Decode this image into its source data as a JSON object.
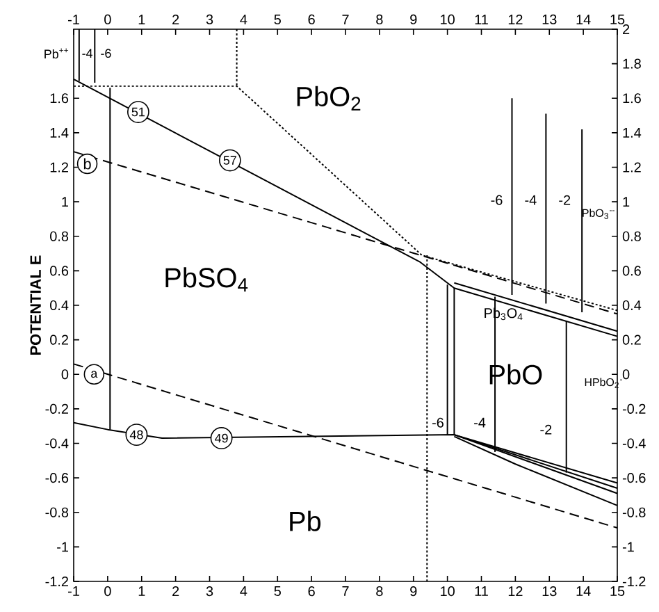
{
  "chart_data": {
    "type": "line",
    "ylabel": "POTENTIAL E",
    "xlim": [
      -1,
      15
    ],
    "xticks": [
      -1,
      0,
      1,
      2,
      3,
      4,
      5,
      6,
      7,
      8,
      9,
      10,
      11,
      12,
      13,
      14,
      15
    ],
    "x2lim": [
      -1,
      15
    ],
    "x2ticks": [
      -1,
      0,
      1,
      2,
      3,
      4,
      5,
      6,
      7,
      8,
      9,
      10,
      11,
      12,
      13,
      14,
      15
    ],
    "ylim": [
      -1.2,
      2
    ],
    "yticks": [
      -1.2,
      -1,
      -0.8,
      -0.6,
      -0.4,
      -0.2,
      0,
      0.2,
      0.4,
      0.6,
      0.8,
      1,
      1.2,
      1.4,
      1.6
    ],
    "y2lim": [
      -1.2,
      2
    ],
    "y2ticks": [
      -1.2,
      -1,
      -0.8,
      -0.6,
      -0.4,
      -0.2,
      0,
      0.2,
      0.4,
      0.6,
      0.8,
      1,
      1.2,
      1.4,
      1.6,
      1.8,
      2
    ],
    "series": [
      {
        "color": "#000000",
        "line_style": "dashed",
        "x": [
          -1,
          15
        ],
        "values": [
          1.29,
          0.35
        ]
      },
      {
        "color": "#000000",
        "line_style": "dashed",
        "x": [
          -1,
          15
        ],
        "values": [
          0.06,
          -0.89
        ]
      },
      {
        "color": "#000000",
        "line_style": "solid",
        "x": [
          -1,
          9.2,
          10.2,
          15
        ],
        "values": [
          1.71,
          0.65,
          0.5,
          0.22
        ]
      },
      {
        "color": "#000000",
        "line_style": "solid",
        "x": [
          10.2,
          15
        ],
        "values": [
          0.53,
          0.25
        ]
      },
      {
        "color": "#000000",
        "line_style": "solid",
        "x": [
          -1,
          0,
          1.6,
          10.2,
          15
        ],
        "values": [
          -0.28,
          -0.32,
          -0.37,
          -0.35,
          -0.63
        ]
      },
      {
        "color": "#000000",
        "line_style": "solid",
        "x": [
          10.0,
          10.0
        ],
        "values": [
          -0.35,
          0.52
        ]
      },
      {
        "color": "#000000",
        "line_style": "solid",
        "x": [
          10.2,
          10.2
        ],
        "values": [
          -0.35,
          0.5
        ]
      },
      {
        "color": "#000000",
        "line_style": "solid",
        "x": [
          10.2,
          15
        ],
        "values": [
          -0.35,
          -0.66
        ]
      },
      {
        "color": "#000000",
        "line_style": "solid",
        "x": [
          10.2,
          15
        ],
        "values": [
          -0.35,
          -0.69
        ]
      },
      {
        "color": "#000000",
        "line_style": "solid",
        "x": [
          10.2,
          12,
          15
        ],
        "values": [
          -0.36,
          -0.52,
          -0.76
        ]
      },
      {
        "color": "#000000",
        "line_style": "solid",
        "x": [
          0.07,
          0.07
        ],
        "values": [
          -0.32,
          1.66
        ]
      },
      {
        "color": "#000000",
        "line_style": "solid",
        "x": [
          -0.84,
          -0.84
        ],
        "values": [
          1.7,
          2
        ]
      },
      {
        "color": "#000000",
        "line_style": "solid",
        "x": [
          -0.38,
          -0.38
        ],
        "values": [
          1.69,
          2
        ]
      },
      {
        "color": "#000000",
        "line_style": "dotted",
        "x": [
          -1,
          3.8,
          9.25,
          15
        ],
        "values": [
          1.67,
          1.67,
          0.69,
          0.37
        ]
      },
      {
        "color": "#000000",
        "line_style": "dotted",
        "x": [
          3.8,
          3.8
        ],
        "values": [
          2,
          1.67
        ]
      },
      {
        "color": "#000000",
        "line_style": "dotted",
        "x": [
          9.4,
          9.4
        ],
        "values": [
          0.69,
          -1.2
        ]
      },
      {
        "color": "#000000",
        "line_style": "solid",
        "x": [
          11.9,
          11.9
        ],
        "values": [
          0.46,
          1.6
        ]
      },
      {
        "color": "#000000",
        "line_style": "solid",
        "x": [
          12.9,
          12.9
        ],
        "values": [
          0.41,
          1.51
        ]
      },
      {
        "color": "#000000",
        "line_style": "solid",
        "x": [
          13.96,
          13.96
        ],
        "values": [
          0.36,
          1.42
        ]
      },
      {
        "color": "#000000",
        "line_style": "solid",
        "x": [
          11.4,
          11.4
        ],
        "values": [
          -0.45,
          0.45
        ]
      },
      {
        "color": "#000000",
        "line_style": "solid",
        "x": [
          13.5,
          13.5
        ],
        "values": [
          -0.57,
          0.31
        ]
      }
    ],
    "annotations": [
      "Pb$^{++}$",
      "-4",
      "-6",
      "PbO$_{2}$",
      "PbSO$_{4}$",
      "Pb",
      "Pb$_{3}$O$_{4}$",
      "PbO",
      "HPbO$_{2}$$^{-}$",
      "PbO$_{3}$$^{--}$",
      "-6",
      "-4",
      "-2",
      "-6",
      "-4",
      "-2",
      {
        "text": "51",
        "x": 0.9,
        "y": 1.52
      },
      {
        "text": "57",
        "x": 3.6,
        "y": 1.24
      },
      "b",
      {
        "text": "a",
        "x": -0.4,
        "y": 0.0
      },
      {
        "text": "48",
        "x": 0.85,
        "y": -0.35
      },
      {
        "text": "49",
        "x": 3.35,
        "y": -0.37
      }
    ]
  }
}
